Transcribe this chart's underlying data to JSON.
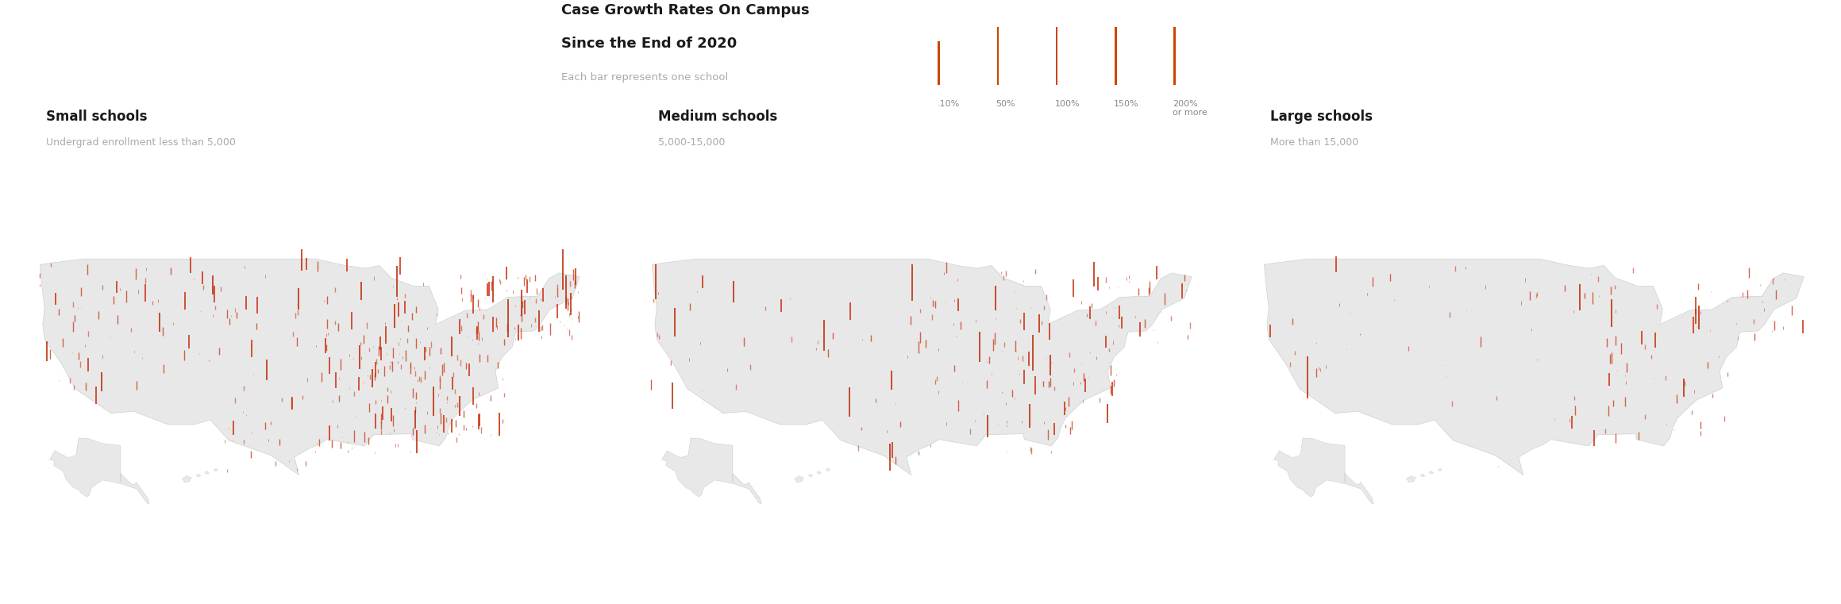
{
  "title_line1": "Case Growth Rates On Campus",
  "title_line2": "Since the End of 2020",
  "subtitle": "Each bar represents one school",
  "legend_labels": [
    ".10%",
    "50%",
    "100%",
    "150%",
    "200%\nor more"
  ],
  "legend_has_tick": [
    false,
    true,
    true,
    true,
    true
  ],
  "panel_titles": [
    "Small schools",
    "Medium schools",
    "Large schools"
  ],
  "panel_subtitles": [
    "Undergrad enrollment less than 5,000",
    "5,000-15,000",
    "More than 15,000"
  ],
  "map_facecolor": "#e8e8e8",
  "map_edgecolor": "#d0d0d0",
  "bar_color_very_low": "#d4a090",
  "bar_color_low": "#d07860",
  "bar_color_mid": "#cc5030",
  "bar_color_high": "#cc3010",
  "bar_color_max": "#bb2800",
  "background_color": "#ffffff",
  "title_color": "#1a1a1a",
  "subtitle_color": "#aaaaaa",
  "legend_text_color": "#888888",
  "panel_title_color": "#1a1a1a",
  "panel_subtitle_color": "#aaaaaa",
  "fig_width": 23.19,
  "fig_height": 7.61,
  "lon_min": -127,
  "lon_max": -65,
  "lat_min": 22,
  "lat_max": 50
}
